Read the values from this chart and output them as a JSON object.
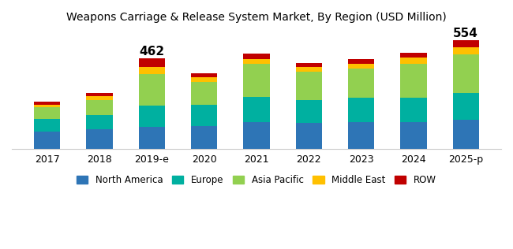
{
  "title": "Weapons Carriage & Release System Market, By Region (USD Million)",
  "categories": [
    "2017",
    "2018",
    "2019-e",
    "2020",
    "2021",
    "2022",
    "2023",
    "2024",
    "2025-p"
  ],
  "series": {
    "North America": [
      90,
      100,
      115,
      118,
      138,
      133,
      138,
      138,
      148
    ],
    "Europe": [
      65,
      75,
      108,
      108,
      128,
      118,
      122,
      125,
      138
    ],
    "Asia Pacific": [
      60,
      75,
      160,
      118,
      168,
      143,
      150,
      170,
      195
    ],
    "Middle East": [
      12,
      18,
      37,
      22,
      26,
      23,
      25,
      32,
      38
    ],
    "ROW": [
      14,
      18,
      42,
      20,
      28,
      21,
      22,
      28,
      35
    ]
  },
  "annotations": {
    "2019-e": "462",
    "2025-p": "554"
  },
  "colors": {
    "North America": "#2E75B6",
    "Europe": "#00B0A0",
    "Asia Pacific": "#92D050",
    "Middle East": "#FFC000",
    "ROW": "#C00000"
  },
  "bar_width": 0.5,
  "ylim": [
    0,
    600
  ],
  "background_color": "#FFFFFF",
  "annotation_fontsize": 11,
  "title_fontsize": 10,
  "legend_fontsize": 8.5,
  "tick_fontsize": 9
}
